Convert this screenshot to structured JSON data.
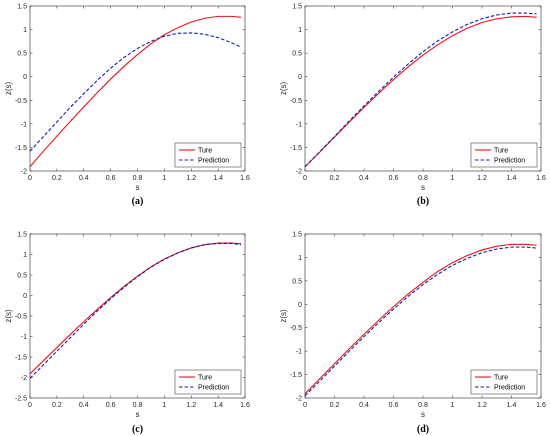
{
  "chart_data": [
    {
      "type": "line",
      "caption": "(a)",
      "xlabel": "s",
      "ylabel": "z(s)",
      "xlim": [
        0,
        1.6
      ],
      "ylim": [
        -2,
        1.5
      ],
      "xticks": [
        "0",
        "0.2",
        "0.4",
        "0.6",
        "0.8",
        "1",
        "1.2",
        "1.4",
        "1.6"
      ],
      "yticks": [
        "-2",
        "-1.5",
        "-1",
        "-0.5",
        "0",
        "0.5",
        "1",
        "1.5"
      ],
      "legend": "bottom-right",
      "series": [
        {
          "name": "Ture",
          "color": "#e8141b",
          "style": "solid",
          "x": [
            0,
            0.1,
            0.2,
            0.3,
            0.4,
            0.5,
            0.6,
            0.7,
            0.8,
            0.9,
            1.0,
            1.1,
            1.2,
            1.3,
            1.4,
            1.5,
            1.57
          ],
          "y": [
            -1.91,
            -1.58,
            -1.26,
            -0.95,
            -0.64,
            -0.34,
            -0.05,
            0.22,
            0.47,
            0.7,
            0.89,
            1.04,
            1.16,
            1.24,
            1.28,
            1.28,
            1.26
          ]
        },
        {
          "name": "Prediction",
          "color": "#1a1aa6",
          "style": "dashed",
          "x": [
            0,
            0.1,
            0.2,
            0.3,
            0.4,
            0.5,
            0.6,
            0.7,
            0.8,
            0.9,
            1.0,
            1.1,
            1.2,
            1.3,
            1.4,
            1.5,
            1.57
          ],
          "y": [
            -1.58,
            -1.27,
            -0.96,
            -0.65,
            -0.36,
            -0.08,
            0.18,
            0.41,
            0.6,
            0.75,
            0.86,
            0.92,
            0.93,
            0.9,
            0.83,
            0.72,
            0.63
          ]
        }
      ]
    },
    {
      "type": "line",
      "caption": "(b)",
      "xlabel": "s",
      "ylabel": "z(s)",
      "xlim": [
        0,
        1.6
      ],
      "ylim": [
        -2,
        1.5
      ],
      "xticks": [
        "0",
        "0.2",
        "0.4",
        "0.6",
        "0.8",
        "1",
        "1.2",
        "1.4",
        "1.6"
      ],
      "yticks": [
        "-2",
        "-1.5",
        "-1",
        "-0.5",
        "0",
        "0.5",
        "1",
        "1.5"
      ],
      "legend": "bottom-right",
      "series": [
        {
          "name": "Ture",
          "color": "#e8141b",
          "style": "solid",
          "x": [
            0,
            0.1,
            0.2,
            0.3,
            0.4,
            0.5,
            0.6,
            0.7,
            0.8,
            0.9,
            1.0,
            1.1,
            1.2,
            1.3,
            1.4,
            1.5,
            1.57
          ],
          "y": [
            -1.91,
            -1.6,
            -1.28,
            -0.96,
            -0.65,
            -0.35,
            -0.06,
            0.21,
            0.46,
            0.68,
            0.87,
            1.03,
            1.15,
            1.23,
            1.27,
            1.28,
            1.26
          ]
        },
        {
          "name": "Prediction",
          "color": "#1a1aa6",
          "style": "dashed",
          "x": [
            0,
            0.1,
            0.2,
            0.3,
            0.4,
            0.5,
            0.6,
            0.7,
            0.8,
            0.9,
            1.0,
            1.1,
            1.2,
            1.3,
            1.4,
            1.5,
            1.57
          ],
          "y": [
            -1.91,
            -1.59,
            -1.27,
            -0.94,
            -0.62,
            -0.31,
            -0.01,
            0.27,
            0.53,
            0.76,
            0.95,
            1.11,
            1.23,
            1.31,
            1.35,
            1.35,
            1.33
          ]
        }
      ]
    },
    {
      "type": "line",
      "caption": "(c)",
      "xlabel": "s",
      "ylabel": "z(s)",
      "xlim": [
        0,
        1.6
      ],
      "ylim": [
        -2.5,
        1.5
      ],
      "xticks": [
        "0",
        "0.2",
        "0.4",
        "0.6",
        "0.8",
        "1",
        "1.2",
        "1.4",
        "1.6"
      ],
      "yticks": [
        "-2.5",
        "-2",
        "-1.5",
        "-1",
        "-0.5",
        "0",
        "0.5",
        "1",
        "1.5"
      ],
      "legend": "bottom-right",
      "series": [
        {
          "name": "Ture",
          "color": "#e8141b",
          "style": "solid",
          "x": [
            0,
            0.1,
            0.2,
            0.3,
            0.4,
            0.5,
            0.6,
            0.7,
            0.8,
            0.9,
            1.0,
            1.1,
            1.2,
            1.3,
            1.4,
            1.5,
            1.57
          ],
          "y": [
            -1.91,
            -1.59,
            -1.27,
            -0.95,
            -0.64,
            -0.34,
            -0.05,
            0.22,
            0.47,
            0.7,
            0.89,
            1.04,
            1.16,
            1.24,
            1.28,
            1.28,
            1.26
          ]
        },
        {
          "name": "Prediction",
          "color": "#1a1aa6",
          "style": "dashed",
          "x": [
            0,
            0.1,
            0.2,
            0.3,
            0.4,
            0.5,
            0.6,
            0.7,
            0.8,
            0.9,
            1.0,
            1.1,
            1.2,
            1.3,
            1.4,
            1.5,
            1.57
          ],
          "y": [
            -2.02,
            -1.69,
            -1.36,
            -1.03,
            -0.7,
            -0.38,
            -0.08,
            0.2,
            0.46,
            0.69,
            0.88,
            1.04,
            1.16,
            1.24,
            1.27,
            1.27,
            1.24
          ]
        }
      ]
    },
    {
      "type": "line",
      "caption": "(d)",
      "xlabel": "s",
      "ylabel": "z(s)",
      "xlim": [
        0,
        1.6
      ],
      "ylim": [
        -2,
        1.5
      ],
      "xticks": [
        "0",
        "0.2",
        "0.4",
        "0.6",
        "0.8",
        "1",
        "1.2",
        "1.4",
        "1.6"
      ],
      "yticks": [
        "-2",
        "-1.5",
        "-1",
        "-0.5",
        "0",
        "0.5",
        "1",
        "1.5"
      ],
      "legend": "bottom-right",
      "series": [
        {
          "name": "Ture",
          "color": "#e8141b",
          "style": "solid",
          "x": [
            0,
            0.1,
            0.2,
            0.3,
            0.4,
            0.5,
            0.6,
            0.7,
            0.8,
            0.9,
            1.0,
            1.1,
            1.2,
            1.3,
            1.4,
            1.5,
            1.57
          ],
          "y": [
            -1.91,
            -1.59,
            -1.27,
            -0.95,
            -0.64,
            -0.34,
            -0.05,
            0.22,
            0.47,
            0.7,
            0.89,
            1.04,
            1.16,
            1.24,
            1.28,
            1.28,
            1.26
          ]
        },
        {
          "name": "Prediction",
          "color": "#1a1aa6",
          "style": "dashed",
          "x": [
            0,
            0.1,
            0.2,
            0.3,
            0.4,
            0.5,
            0.6,
            0.7,
            0.8,
            0.9,
            1.0,
            1.1,
            1.2,
            1.3,
            1.4,
            1.5,
            1.57
          ],
          "y": [
            -1.95,
            -1.64,
            -1.32,
            -1.0,
            -0.69,
            -0.39,
            -0.1,
            0.17,
            0.42,
            0.64,
            0.83,
            0.98,
            1.1,
            1.18,
            1.22,
            1.22,
            1.2
          ]
        }
      ]
    }
  ]
}
